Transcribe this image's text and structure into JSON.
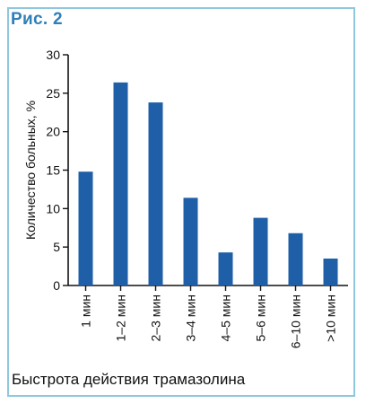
{
  "figure": {
    "label": "Рис. 2",
    "caption": "Быстрота действия трамазолина"
  },
  "colors": {
    "bar": "#1f5fa8",
    "border": "#8fc7de",
    "label": "#2e7fb9"
  },
  "chart_data": {
    "type": "bar",
    "title": "",
    "xlabel": "",
    "ylabel": "Количество больных, %",
    "categories": [
      "1 мин",
      "1–2 мин",
      "2–3 мин",
      "3–4 мин",
      "4–5 мин",
      "5–6 мин",
      "6–10 мин",
      ">10 мин"
    ],
    "values": [
      14.8,
      26.4,
      23.8,
      11.4,
      4.3,
      8.8,
      6.8,
      3.5
    ],
    "ylim": [
      0,
      30
    ],
    "yticks": [
      0,
      5,
      10,
      15,
      20,
      25,
      30
    ],
    "grid": false,
    "legend": "none"
  }
}
